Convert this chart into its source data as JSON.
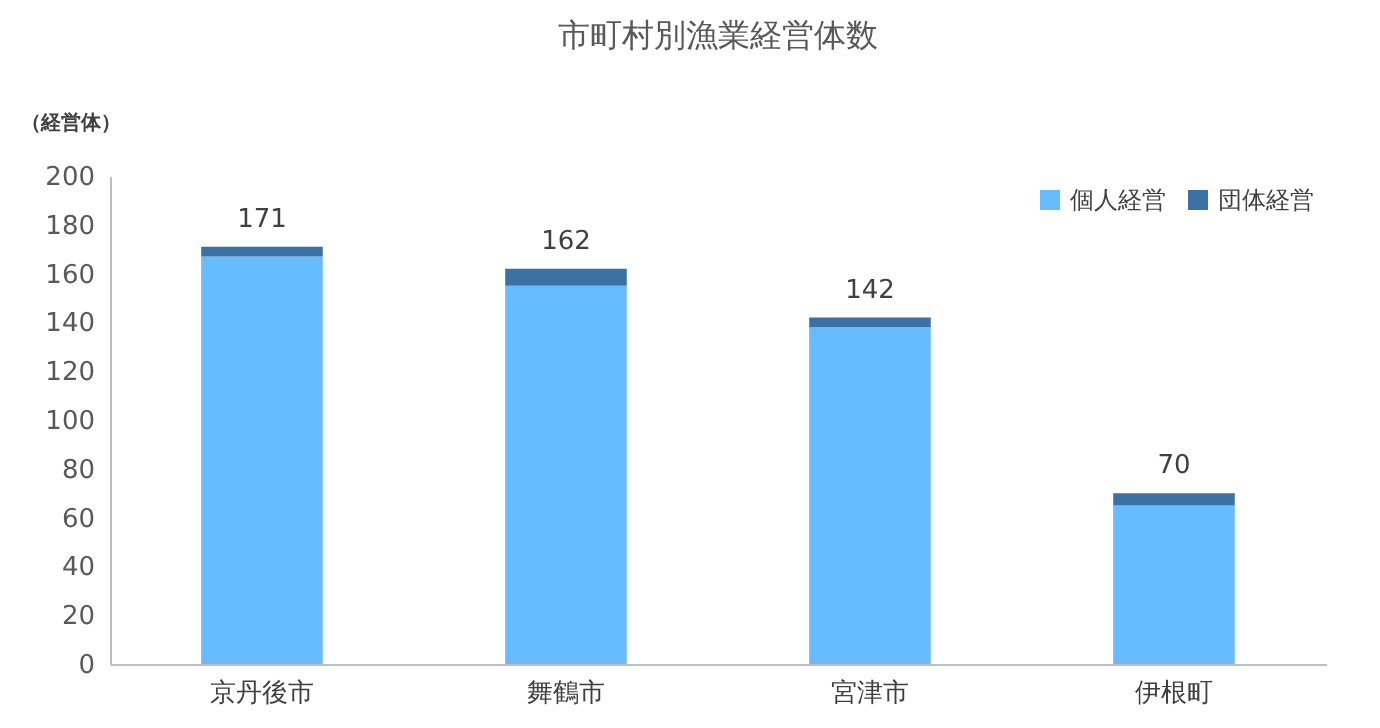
{
  "chart_data": {
    "type": "bar",
    "title": "市町村別漁業経営体数",
    "ylabel": "（経営体）",
    "categories": [
      "京丹後市",
      "舞鶴市",
      "宮津市",
      "伊根町"
    ],
    "series": [
      {
        "name": "個人経営",
        "color": "#66bcfe",
        "values": [
          167,
          155,
          138,
          65
        ]
      },
      {
        "name": "団体経営",
        "color": "#3b72a3",
        "values": [
          4,
          7,
          4,
          5
        ]
      }
    ],
    "stacked": true,
    "totals": [
      "171",
      "162",
      "142",
      "70"
    ],
    "ylim": [
      0,
      200
    ],
    "yticks": [
      0,
      20,
      40,
      60,
      80,
      100,
      120,
      140,
      160,
      180,
      200
    ],
    "grid": false,
    "legend": "top right"
  }
}
